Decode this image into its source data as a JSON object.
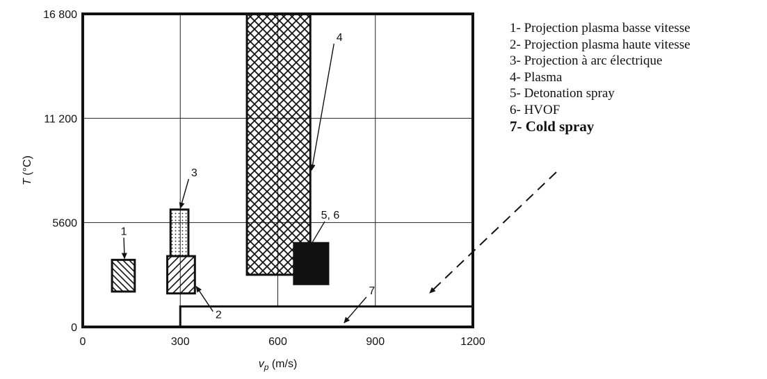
{
  "chart_data": {
    "type": "range-boxes",
    "xlabel": {
      "var": "v",
      "sub": "p",
      "unit": " (m/s)"
    },
    "ylabel": {
      "var": "T",
      "unit": " (°C)"
    },
    "xlim": [
      0,
      1200
    ],
    "ylim": [
      0,
      16800
    ],
    "x_ticks": [
      "0",
      "300",
      "600",
      "900",
      "1200"
    ],
    "y_ticks": [
      "0",
      "5600",
      "11 200",
      "16 800"
    ],
    "x_tick_values": [
      0,
      300,
      600,
      900,
      1200
    ],
    "y_tick_values": [
      0,
      5600,
      11200,
      16800
    ],
    "grid": true,
    "boxes": [
      {
        "id": "1",
        "x_range": [
          90,
          160
        ],
        "y_range": [
          1900,
          3600
        ],
        "pattern": "hatch-back"
      },
      {
        "id": "2",
        "x_range": [
          260,
          345
        ],
        "y_range": [
          1800,
          3800
        ],
        "pattern": "hatch-forward"
      },
      {
        "id": "3",
        "x_range": [
          270,
          325
        ],
        "y_range": [
          3800,
          6300
        ],
        "pattern": "dots"
      },
      {
        "id": "4",
        "x_range": [
          505,
          700
        ],
        "y_range": [
          2800,
          16800
        ],
        "pattern": "crosshatch"
      },
      {
        "id": "5, 6",
        "x_range": [
          650,
          755
        ],
        "y_range": [
          2300,
          4500
        ],
        "pattern": "solid"
      },
      {
        "id": "7",
        "x_range": [
          300,
          1200
        ],
        "y_range": [
          0,
          1100
        ],
        "pattern": "none"
      }
    ]
  },
  "legend": [
    {
      "text": "1- Projection plasma basse vitesse",
      "bold": false
    },
    {
      "text": "2- Projection plasma haute vitesse",
      "bold": false
    },
    {
      "text": "3- Projection à arc électrique",
      "bold": false
    },
    {
      "text": "4- Plasma",
      "bold": false
    },
    {
      "text": "5- Detonation spray",
      "bold": false
    },
    {
      "text": "6- HVOF",
      "bold": false
    },
    {
      "text": "7- Cold spray",
      "bold": true
    }
  ],
  "colors": {
    "ink": "#111111",
    "grid": "#222222",
    "background": "#ffffff"
  }
}
